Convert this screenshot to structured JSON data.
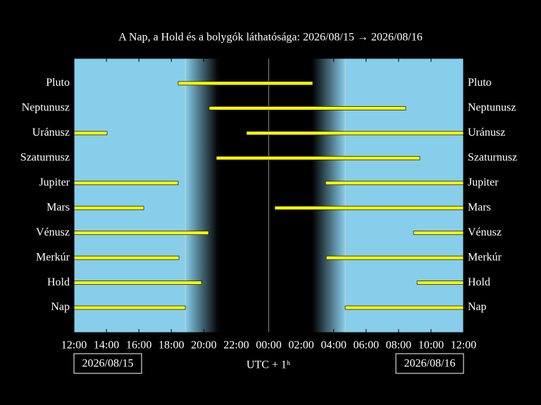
{
  "chart_data": {
    "type": "timeline",
    "title": "A Nap, a Hold és a bolygók láthatósága: 2026/08/15 → 2026/08/16",
    "xlabel": "UTC + 1ʰ",
    "date_labels": [
      "2026/08/15",
      "2026/08/16"
    ],
    "categories": [
      "Pluto",
      "Neptunusz",
      "Uránusz",
      "Szaturnusz",
      "Jupiter",
      "Mars",
      "Vénusz",
      "Merkúr",
      "Hold",
      "Nap"
    ],
    "segments": [
      [
        [
          18.42,
          26.71
        ]
      ],
      [
        [
          20.33,
          32.44
        ]
      ],
      [
        [
          12,
          14.04
        ],
        [
          22.63,
          36
        ]
      ],
      [
        [
          20.77,
          33.31
        ]
      ],
      [
        [
          12,
          18.42
        ],
        [
          27.5,
          36
        ]
      ],
      [
        [
          12,
          16.3
        ],
        [
          24.37,
          36
        ]
      ],
      [
        [
          12,
          20.29
        ],
        [
          32.92,
          36
        ]
      ],
      [
        [
          12,
          18.47
        ],
        [
          27.54,
          36
        ]
      ],
      [
        [
          12,
          19.86
        ],
        [
          33.14,
          36
        ]
      ],
      [
        [
          12,
          18.86
        ],
        [
          28.71,
          36
        ]
      ]
    ],
    "color": "#ffff00",
    "xlim": [
      12,
      36
    ],
    "xticks": [
      {
        "value": 12,
        "label": "12:00"
      },
      {
        "value": 14,
        "label": "14:00"
      },
      {
        "value": 16,
        "label": "16:00"
      },
      {
        "value": 18,
        "label": "18:00"
      },
      {
        "value": 20,
        "label": "20:00"
      },
      {
        "value": 22,
        "label": "22:00"
      },
      {
        "value": 24,
        "label": "00:00"
      },
      {
        "value": 26,
        "label": "02:00"
      },
      {
        "value": 28,
        "label": "04:00"
      },
      {
        "value": 30,
        "label": "06:00"
      },
      {
        "value": 32,
        "label": "08:00"
      },
      {
        "value": 34,
        "label": "10:00"
      },
      {
        "value": 36,
        "label": "12:00"
      }
    ]
  }
}
